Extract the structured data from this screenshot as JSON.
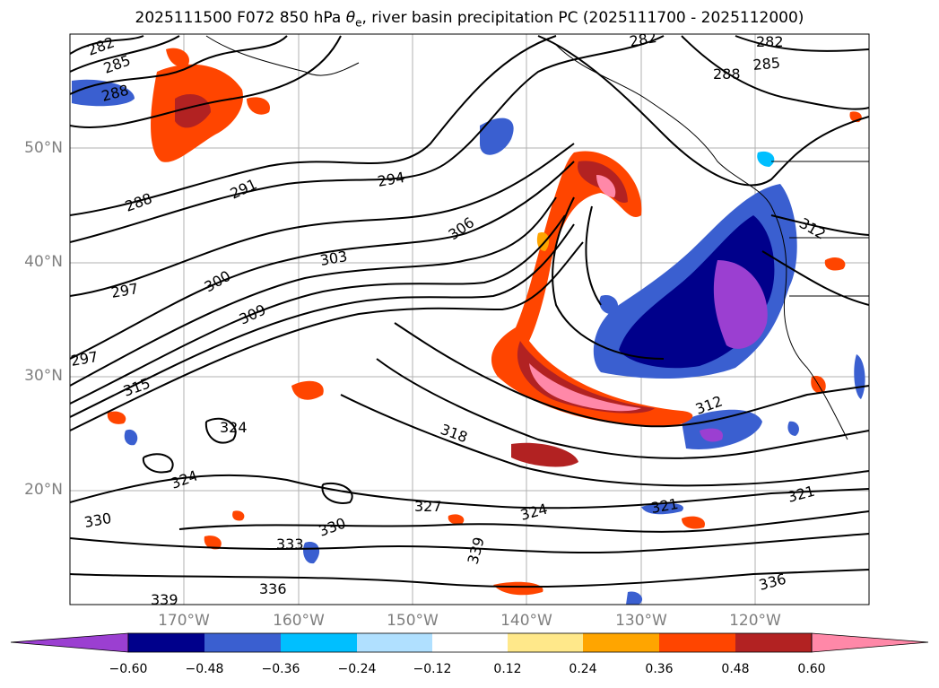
{
  "title": {
    "prefix": "2025111500 F072 850 hPa ",
    "theta": "θ",
    "sub": "e",
    "suffix": ", river basin precipitation PC (2025111700 - 2025112000)"
  },
  "map": {
    "lat_labels": [
      "50°N",
      "40°N",
      "30°N",
      "20°N"
    ],
    "lon_labels": [
      "170°W",
      "160°W",
      "150°W",
      "140°W",
      "130°W",
      "120°W"
    ],
    "contour_labels": [
      "282",
      "285",
      "288",
      "291",
      "294",
      "297",
      "300",
      "303",
      "306",
      "309",
      "312",
      "315",
      "318",
      "321",
      "324",
      "327",
      "330",
      "333",
      "336",
      "339"
    ],
    "colors": {
      "ocean": "#ffffff",
      "contour": "#000000",
      "grid": "#b0b0b0"
    }
  },
  "colorbar": {
    "ticks": [
      "−0.60",
      "−0.48",
      "−0.36",
      "−0.24",
      "−0.12",
      "0.12",
      "0.24",
      "0.36",
      "0.48",
      "0.60"
    ],
    "colors": [
      "#9b3fd1",
      "#00008b",
      "#3a5fd0",
      "#00bfff",
      "#b0e0ff",
      "#ffffff",
      "#ffe88a",
      "#ffa500",
      "#ff4500",
      "#b22222",
      "#ff88a8",
      "#ff88a8"
    ]
  }
}
